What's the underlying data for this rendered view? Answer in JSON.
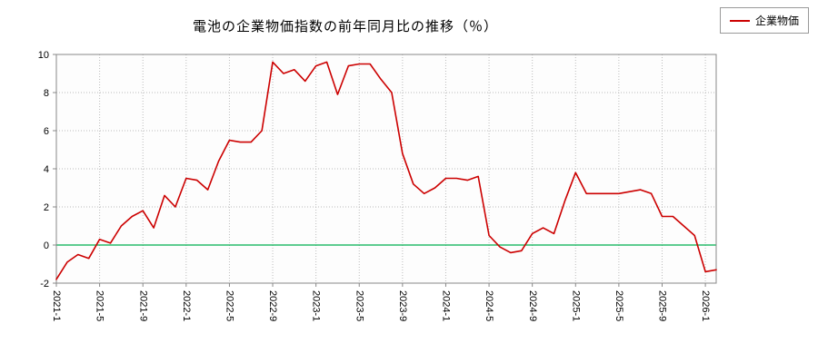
{
  "chart": {
    "title": "電池の企業物価指数の前年同月比の推移（％）",
    "legend": {
      "label": "企業物価",
      "line_color": "#cc0000"
    }
  },
  "chart_data": {
    "type": "line",
    "title": "電池の企業物価指数の前年同月比の推移（％）",
    "ylabel": "",
    "xlabel": "",
    "ylim": [
      -2,
      10
    ],
    "yticks": [
      -2,
      0,
      2,
      4,
      6,
      8,
      10
    ],
    "grid": true,
    "legend_position": "top-right",
    "zero_line_color": "#00b050",
    "grid_color": "#bbbbbb",
    "axis_color": "#888888",
    "x": [
      "2021-1",
      "2021-2",
      "2021-3",
      "2021-4",
      "2021-5",
      "2021-6",
      "2021-7",
      "2021-8",
      "2021-9",
      "2021-10",
      "2021-11",
      "2021-12",
      "2022-1",
      "2022-2",
      "2022-3",
      "2022-4",
      "2022-5",
      "2022-6",
      "2022-7",
      "2022-8",
      "2022-9",
      "2022-10",
      "2022-11",
      "2022-12",
      "2023-1",
      "2023-2",
      "2023-3",
      "2023-4",
      "2023-5",
      "2023-6",
      "2023-7",
      "2023-8",
      "2023-9",
      "2023-10",
      "2023-11",
      "2023-12",
      "2024-1",
      "2024-2",
      "2024-3",
      "2024-4",
      "2024-5",
      "2024-6",
      "2024-7",
      "2024-8",
      "2024-9",
      "2024-10",
      "2024-11",
      "2024-12",
      "2025-1",
      "2025-2",
      "2025-3",
      "2025-4",
      "2025-5",
      "2025-6",
      "2025-7",
      "2025-8",
      "2025-9",
      "2025-10",
      "2025-11",
      "2025-12",
      "2026-1",
      "2026-2"
    ],
    "xtick_labels": [
      "2021-1",
      "2021-5",
      "2021-9",
      "2022-1",
      "2022-5",
      "2022-9",
      "2023-1",
      "2023-5",
      "2023-9",
      "2024-1",
      "2024-5",
      "2024-9",
      "2025-1",
      "2025-5",
      "2025-9",
      "2026-1"
    ],
    "series": [
      {
        "name": "企業物価",
        "color": "#cc0000",
        "values": [
          -1.8,
          -0.9,
          -0.5,
          -0.7,
          0.3,
          0.1,
          1.0,
          1.5,
          1.8,
          0.9,
          2.6,
          2.0,
          3.5,
          3.4,
          2.9,
          4.4,
          5.5,
          5.4,
          5.4,
          6.0,
          9.6,
          9.0,
          9.2,
          8.6,
          9.4,
          9.6,
          7.9,
          9.4,
          9.5,
          9.5,
          8.7,
          8.0,
          4.8,
          3.2,
          2.7,
          3.0,
          3.5,
          3.5,
          3.4,
          3.6,
          0.5,
          -0.1,
          -0.4,
          -0.3,
          0.6,
          0.9,
          0.6,
          2.3,
          3.8,
          2.7,
          2.7,
          2.7,
          2.7,
          2.8,
          2.9,
          2.7,
          1.5,
          1.5,
          1.0,
          0.5,
          -1.4,
          -1.3
        ]
      }
    ]
  }
}
